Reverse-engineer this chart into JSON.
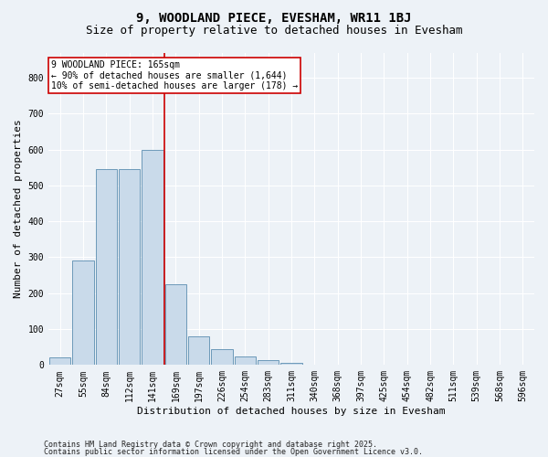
{
  "title1": "9, WOODLAND PIECE, EVESHAM, WR11 1BJ",
  "title2": "Size of property relative to detached houses in Evesham",
  "xlabel": "Distribution of detached houses by size in Evesham",
  "ylabel": "Number of detached properties",
  "footnote1": "Contains HM Land Registry data © Crown copyright and database right 2025.",
  "footnote2": "Contains public sector information licensed under the Open Government Licence v3.0.",
  "bins": [
    "27sqm",
    "55sqm",
    "84sqm",
    "112sqm",
    "141sqm",
    "169sqm",
    "197sqm",
    "226sqm",
    "254sqm",
    "283sqm",
    "311sqm",
    "340sqm",
    "368sqm",
    "397sqm",
    "425sqm",
    "454sqm",
    "482sqm",
    "511sqm",
    "539sqm",
    "568sqm",
    "596sqm"
  ],
  "bar_heights": [
    20,
    290,
    545,
    545,
    600,
    225,
    80,
    45,
    25,
    13,
    7,
    0,
    0,
    0,
    0,
    0,
    0,
    0,
    0,
    0,
    0
  ],
  "bar_color": "#c9daea",
  "bar_edgecolor": "#5b8db0",
  "vline_idx": 5,
  "vline_color": "#cc0000",
  "annotation_text": "9 WOODLAND PIECE: 165sqm\n← 90% of detached houses are smaller (1,644)\n10% of semi-detached houses are larger (178) →",
  "annotation_box_edgecolor": "#cc0000",
  "annotation_box_facecolor": "#ffffff",
  "ylim": [
    0,
    870
  ],
  "yticks": [
    0,
    100,
    200,
    300,
    400,
    500,
    600,
    700,
    800
  ],
  "bg_color": "#edf2f7",
  "plot_bg_color": "#edf2f7",
  "grid_color": "#ffffff",
  "title_fontsize": 10,
  "subtitle_fontsize": 9,
  "xlabel_fontsize": 8,
  "ylabel_fontsize": 8,
  "tick_fontsize": 7,
  "annot_fontsize": 7,
  "footnote_fontsize": 6
}
